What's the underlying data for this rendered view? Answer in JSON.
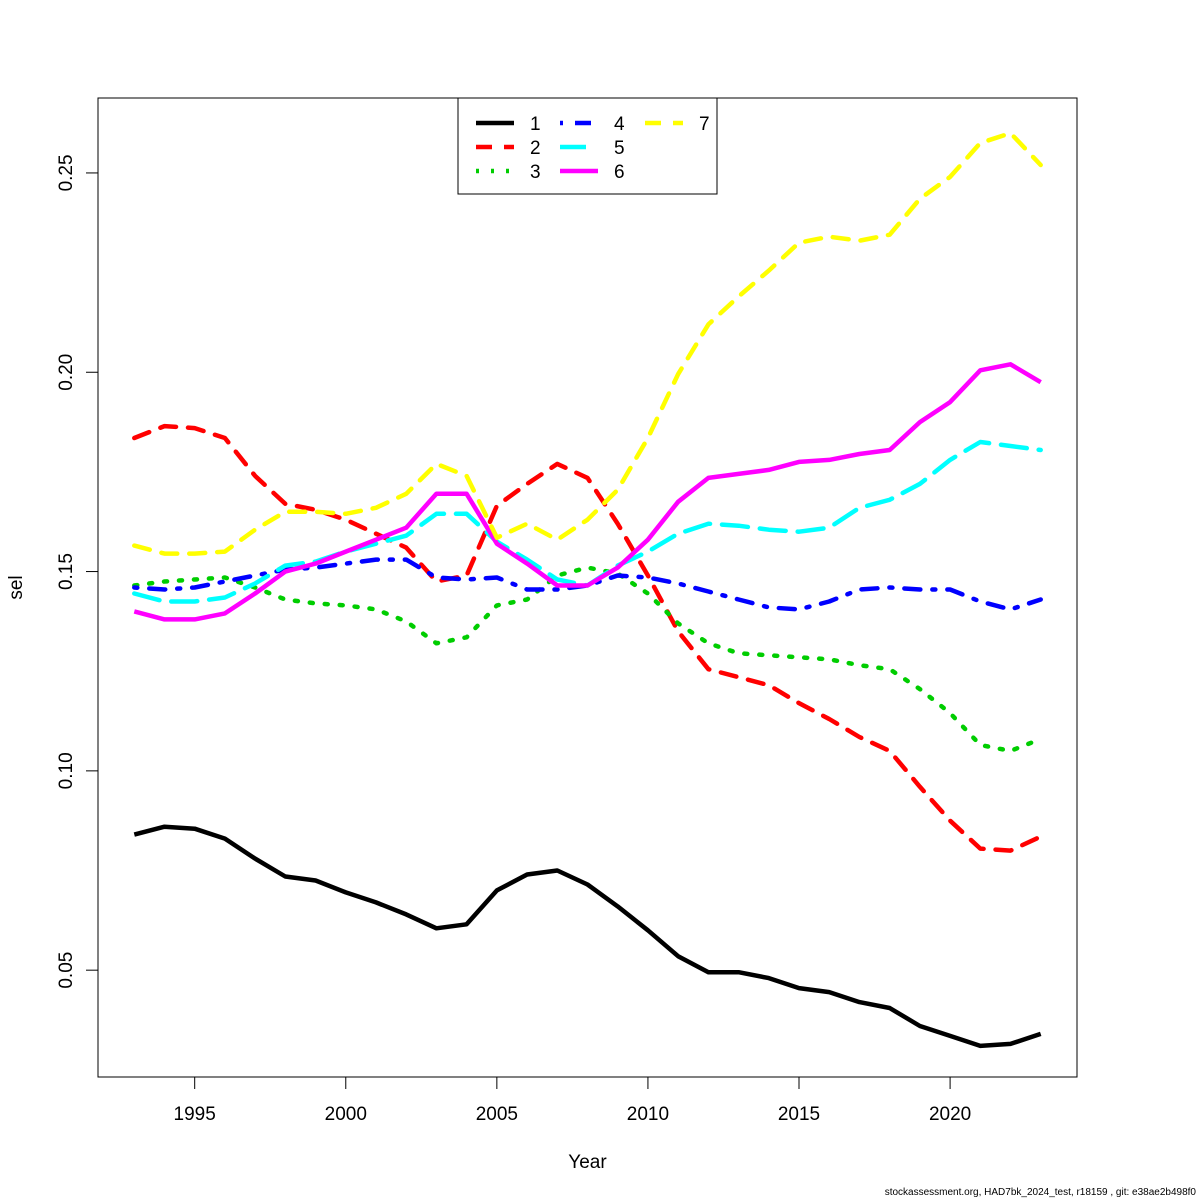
{
  "chart_data": {
    "type": "line",
    "title": "",
    "xlabel": "Year",
    "ylabel": "sel",
    "xlim": [
      1991.8,
      2024.2
    ],
    "ylim": [
      0.0232,
      0.2688
    ],
    "x_ticks": [
      1995,
      2000,
      2005,
      2010,
      2015,
      2020
    ],
    "x_tick_labels": [
      "1995",
      "2000",
      "2005",
      "2010",
      "2015",
      "2020"
    ],
    "y_ticks": [
      0.05,
      0.1,
      0.15,
      0.2,
      0.25
    ],
    "y_tick_labels": [
      "0.05",
      "0.10",
      "0.15",
      "0.20",
      "0.25"
    ],
    "grid": false,
    "legend_position": "top-center",
    "x": [
      1993,
      1994,
      1995,
      1996,
      1997,
      1998,
      1999,
      2000,
      2001,
      2002,
      2003,
      2004,
      2005,
      2006,
      2007,
      2008,
      2009,
      2010,
      2011,
      2012,
      2013,
      2014,
      2015,
      2016,
      2017,
      2018,
      2019,
      2020,
      2021,
      2022,
      2023
    ],
    "series": [
      {
        "name": "1",
        "color": "#000000",
        "dash": "solid",
        "values": [
          0.084,
          0.086,
          0.0855,
          0.083,
          0.078,
          0.0735,
          0.0725,
          0.0695,
          0.067,
          0.064,
          0.0605,
          0.0615,
          0.07,
          0.074,
          0.075,
          0.0715,
          0.066,
          0.06,
          0.0535,
          0.0495,
          0.0495,
          0.048,
          0.0455,
          0.0445,
          0.042,
          0.0405,
          0.036,
          0.0335,
          0.031,
          0.0315,
          0.034
        ]
      },
      {
        "name": "2",
        "color": "#ff0000",
        "dash": "dashed",
        "values": [
          0.1835,
          0.1865,
          0.186,
          0.1835,
          0.174,
          0.167,
          0.1655,
          0.163,
          0.1595,
          0.156,
          0.1475,
          0.149,
          0.1665,
          0.172,
          0.177,
          0.1735,
          0.162,
          0.149,
          0.135,
          0.1255,
          0.1235,
          0.1215,
          0.117,
          0.113,
          0.1085,
          0.105,
          0.096,
          0.0875,
          0.0805,
          0.08,
          0.0835
        ]
      },
      {
        "name": "3",
        "color": "#00cd00",
        "dash": "dotted",
        "values": [
          0.1465,
          0.1475,
          0.148,
          0.1485,
          0.146,
          0.143,
          0.142,
          0.1415,
          0.1405,
          0.1375,
          0.132,
          0.1335,
          0.1415,
          0.143,
          0.149,
          0.151,
          0.1495,
          0.1445,
          0.137,
          0.132,
          0.1295,
          0.129,
          0.1285,
          0.128,
          0.1265,
          0.1255,
          0.1205,
          0.1145,
          0.1065,
          0.105,
          0.108
        ]
      },
      {
        "name": "4",
        "color": "#0000ff",
        "dash": "dotdash",
        "values": [
          0.146,
          0.1455,
          0.146,
          0.1475,
          0.149,
          0.1505,
          0.151,
          0.152,
          0.153,
          0.153,
          0.1485,
          0.148,
          0.1485,
          0.1455,
          0.1455,
          0.1465,
          0.149,
          0.1485,
          0.147,
          0.145,
          0.143,
          0.141,
          0.1405,
          0.1425,
          0.1455,
          0.146,
          0.1455,
          0.1455,
          0.1425,
          0.1405,
          0.143
        ]
      },
      {
        "name": "5",
        "color": "#00ffff",
        "dash": "longdash",
        "values": [
          0.1445,
          0.1425,
          0.1425,
          0.1435,
          0.147,
          0.1515,
          0.1525,
          0.155,
          0.157,
          0.159,
          0.1645,
          0.1645,
          0.1575,
          0.153,
          0.148,
          0.1465,
          0.1515,
          0.155,
          0.1595,
          0.162,
          0.1615,
          0.1605,
          0.16,
          0.161,
          0.166,
          0.168,
          0.172,
          0.178,
          0.1825,
          0.1815,
          0.1805
        ]
      },
      {
        "name": "6",
        "color": "#ff00ff",
        "dash": "solid",
        "values": [
          0.14,
          0.138,
          0.138,
          0.1395,
          0.1445,
          0.15,
          0.152,
          0.155,
          0.158,
          0.161,
          0.1695,
          0.1695,
          0.157,
          0.152,
          0.1465,
          0.1465,
          0.151,
          0.158,
          0.1675,
          0.1735,
          0.1745,
          0.1755,
          0.1775,
          0.178,
          0.1795,
          0.1805,
          0.1875,
          0.1925,
          0.2005,
          0.202,
          0.1975
        ]
      },
      {
        "name": "7",
        "color": "#ffff00",
        "dash": "dashed",
        "values": [
          0.1565,
          0.1545,
          0.1545,
          0.155,
          0.1605,
          0.165,
          0.165,
          0.1645,
          0.166,
          0.1695,
          0.177,
          0.174,
          0.1585,
          0.162,
          0.158,
          0.163,
          0.1705,
          0.1835,
          0.1995,
          0.212,
          0.219,
          0.2255,
          0.2325,
          0.234,
          0.233,
          0.2345,
          0.2435,
          0.249,
          0.2575,
          0.26,
          0.252
        ]
      }
    ]
  },
  "footer": "stockassessment.org, HAD7bk_2024_test, r18159 , git: e38ae2b498f0"
}
